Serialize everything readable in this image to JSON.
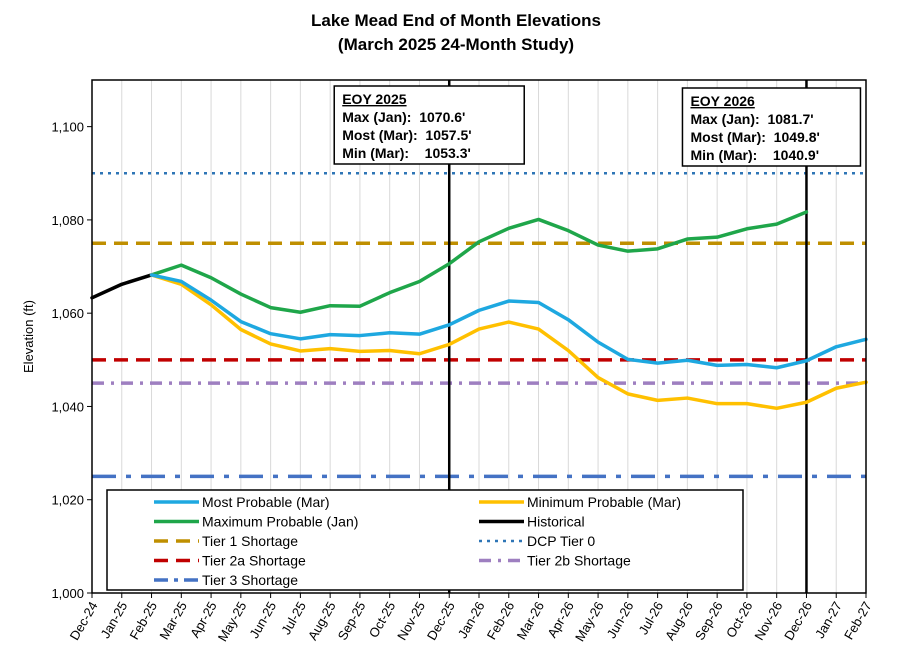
{
  "chart_data": {
    "type": "line",
    "title": "Lake Mead End of Month Elevations",
    "subtitle": "(March 2025 24-Month Study)",
    "ylabel": "Elevation (ft)",
    "xlabel": "",
    "ylim": [
      1000,
      1110
    ],
    "yticks": [
      1000,
      1020,
      1040,
      1060,
      1080,
      1100
    ],
    "ytick_labels": [
      "1,000",
      "1,020",
      "1,040",
      "1,060",
      "1,080",
      "1,100"
    ],
    "grid": "vertical gridlines",
    "legend_position": "lower-left",
    "categories": [
      "Dec-24",
      "Jan-25",
      "Feb-25",
      "Mar-25",
      "Apr-25",
      "May-25",
      "Jun-25",
      "Jul-25",
      "Aug-25",
      "Sep-25",
      "Oct-25",
      "Nov-25",
      "Dec-25",
      "Jan-26",
      "Feb-26",
      "Mar-26",
      "Apr-26",
      "May-26",
      "Jun-26",
      "Jul-26",
      "Aug-26",
      "Sep-26",
      "Oct-26",
      "Nov-26",
      "Dec-26",
      "Jan-27",
      "Feb-27"
    ],
    "series": [
      {
        "name": "Most Probable (Mar)",
        "color": "#1EA8E0",
        "style": "solid",
        "values": [
          null,
          null,
          1068.2,
          1066.8,
          1062.8,
          1058.2,
          1055.6,
          1054.5,
          1055.4,
          1055.2,
          1055.8,
          1055.5,
          1057.5,
          1060.6,
          1062.6,
          1062.3,
          1058.6,
          1053.8,
          1050.1,
          1049.3,
          1049.9,
          1048.8,
          1049.0,
          1048.3,
          1049.8,
          1052.8,
          1054.4
        ]
      },
      {
        "name": "Minimum Probable (Mar)",
        "color": "#FFC000",
        "style": "solid",
        "values": [
          null,
          null,
          1068.2,
          1066.2,
          1061.8,
          1056.5,
          1053.4,
          1051.9,
          1052.4,
          1051.8,
          1052.0,
          1051.3,
          1053.3,
          1056.6,
          1058.1,
          1056.6,
          1052.0,
          1046.2,
          1042.7,
          1041.3,
          1041.8,
          1040.6,
          1040.6,
          1039.6,
          1040.9,
          1043.9,
          1045.2
        ]
      },
      {
        "name": "Maximum Probable (Jan)",
        "color": "#1FA64A",
        "style": "solid",
        "values": [
          null,
          null,
          1068.2,
          1070.3,
          1067.6,
          1064.1,
          1061.2,
          1060.2,
          1061.6,
          1061.5,
          1064.4,
          1066.8,
          1070.6,
          1075.3,
          1078.2,
          1080.1,
          1077.7,
          1074.6,
          1073.3,
          1073.8,
          1075.9,
          1076.3,
          1078.1,
          1079.1,
          1081.7,
          null,
          null
        ]
      },
      {
        "name": "Historical",
        "color": "#000000",
        "style": "solid",
        "values": [
          1063.3,
          1066.2,
          1068.2,
          null,
          null,
          null,
          null,
          null,
          null,
          null,
          null,
          null,
          null,
          null,
          null,
          null,
          null,
          null,
          null,
          null,
          null,
          null,
          null,
          null,
          null,
          null,
          null
        ]
      }
    ],
    "reference_lines": [
      {
        "name": "Tier 1 Shortage",
        "y": 1075,
        "color": "#BF8F00",
        "style": "dash"
      },
      {
        "name": "DCP Tier 0",
        "y": 1090,
        "color": "#2E75B6",
        "style": "dot"
      },
      {
        "name": "Tier 2a Shortage",
        "y": 1050,
        "color": "#C00000",
        "style": "dash"
      },
      {
        "name": "Tier 2b Shortage",
        "y": 1045,
        "color": "#9E7FC0",
        "style": "dashdot"
      },
      {
        "name": "Tier 3 Shortage",
        "y": 1025,
        "color": "#4472C4",
        "style": "longdashdot"
      }
    ],
    "markers": [
      {
        "at": "Dec-25",
        "color": "#000000"
      },
      {
        "at": "Dec-26",
        "color": "#000000"
      }
    ],
    "annotations": [
      {
        "at": "Dec-25",
        "heading": "EOY 2025",
        "lines": [
          "Max (Jan):  1070.6'",
          "Most (Mar):  1057.5'",
          "Min (Mar):    1053.3'"
        ]
      },
      {
        "at": "Dec-26",
        "heading": "EOY 2026",
        "lines": [
          "Max (Jan):  1081.7'",
          "Most (Mar):  1049.8'",
          "Min (Mar):    1040.9'"
        ]
      }
    ],
    "legend": [
      {
        "name": "Most Probable (Mar)",
        "color": "#1EA8E0",
        "style": "solid"
      },
      {
        "name": "Minimum Probable (Mar)",
        "color": "#FFC000",
        "style": "solid"
      },
      {
        "name": "Maximum Probable (Jan)",
        "color": "#1FA64A",
        "style": "solid"
      },
      {
        "name": "Historical",
        "color": "#000000",
        "style": "solid"
      },
      {
        "name": "Tier 1 Shortage",
        "color": "#BF8F00",
        "style": "dash"
      },
      {
        "name": "DCP Tier 0",
        "color": "#2E75B6",
        "style": "dot"
      },
      {
        "name": "Tier 2a Shortage",
        "color": "#C00000",
        "style": "dash"
      },
      {
        "name": "Tier 2b Shortage",
        "color": "#9E7FC0",
        "style": "dashdot"
      },
      {
        "name": "Tier 3 Shortage",
        "color": "#4472C4",
        "style": "longdashdot"
      }
    ]
  }
}
